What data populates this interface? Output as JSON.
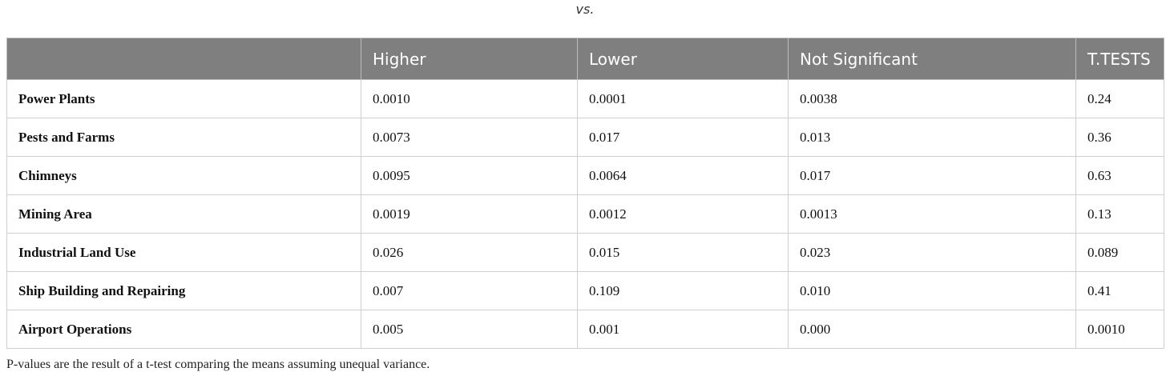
{
  "header": {
    "title": "vs."
  },
  "table": {
    "columns": [
      "Higher",
      "Lower",
      "Not Significant",
      "T.TESTS"
    ],
    "rows": [
      [
        "Power Plants",
        "0.0010",
        "0.0001",
        "0.0038",
        "0.24"
      ],
      [
        "Pests and Farms",
        "0.0073",
        "0.017",
        "0.013",
        "0.36"
      ],
      [
        "Chimneys",
        "0.0095",
        "0.0064",
        "0.017",
        "0.63"
      ],
      [
        "Mining Area",
        "0.0019",
        "0.0012",
        "0.0013",
        "0.13"
      ],
      [
        "Industrial Land Use",
        "0.026",
        "0.015",
        "0.023",
        "0.089"
      ],
      [
        "Ship Building and Repairing",
        "0.007",
        "0.109",
        "0.010",
        "0.41"
      ],
      [
        "Airport Operations",
        "0.005",
        "0.001",
        "0.000",
        "0.0010"
      ]
    ]
  },
  "footnote": "P-values are the result of a t-test comparing the means assuming unequal variance."
}
